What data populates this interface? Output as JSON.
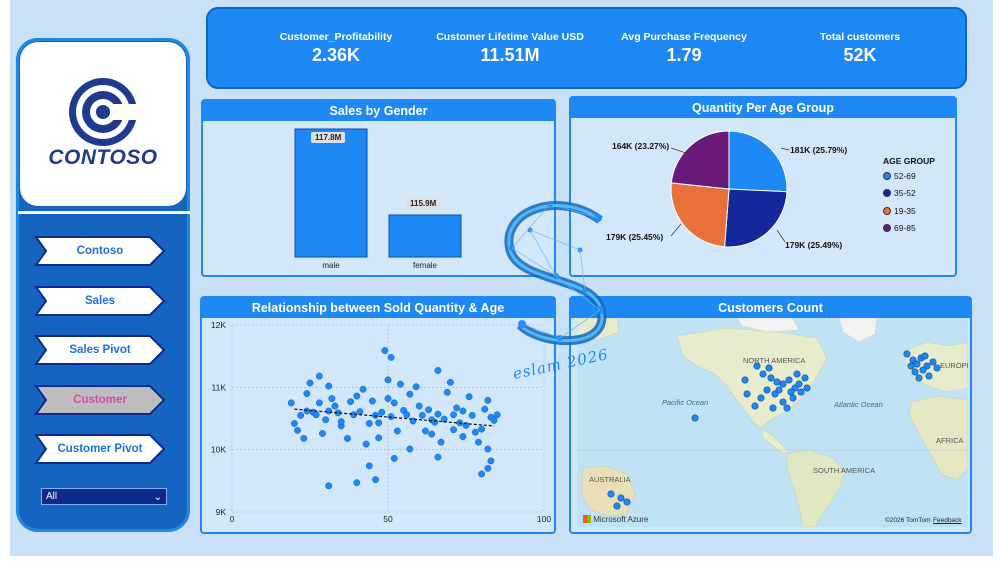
{
  "brand": {
    "name": "CONTOSO"
  },
  "nav": {
    "items": [
      {
        "label": "Contoso",
        "active": false
      },
      {
        "label": "Sales",
        "active": false
      },
      {
        "label": "Sales Pivot",
        "active": false
      },
      {
        "label": "Customer",
        "active": true
      },
      {
        "label": "Customer Pivot",
        "active": false
      }
    ],
    "filter_value": "All"
  },
  "kpis": [
    {
      "title": "Customer_Profitability",
      "value": "2.36K"
    },
    {
      "title": "Customer Lifetime Value USD",
      "value": "11.51M"
    },
    {
      "title": "Avg Purchase Frequency",
      "value": "1.79"
    },
    {
      "title": "Total customers",
      "value": "52K"
    }
  ],
  "panels": {
    "sales_by_gender": "Sales by Gender",
    "quantity_per_age": "Quantity Per Age Group",
    "relationship": "Relationship between Sold Quantity & Age",
    "customers_count": "Customers Count"
  },
  "watermark": {
    "text": "eslam 2026"
  },
  "chart_data": [
    {
      "type": "bar",
      "title": "Sales by Gender",
      "categories": [
        "male",
        "female"
      ],
      "values": [
        117.8,
        115.9
      ],
      "value_labels": [
        "117.8M",
        "115.9M"
      ],
      "color": "#1e88f5"
    },
    {
      "type": "pie",
      "title": "Quantity Per Age Group",
      "legend_title": "AGE GROUP",
      "legend_position": "right",
      "slices": [
        {
          "name": "52-69",
          "value": 181,
          "label": "181K (25.79%)",
          "color": "#1e88f5"
        },
        {
          "name": "35-52",
          "value": 179,
          "label": "179K (25.49%)",
          "color": "#14279b"
        },
        {
          "name": "19-35",
          "value": 179,
          "label": "179K (25.45%)",
          "color": "#e8713a"
        },
        {
          "name": "69-85",
          "value": 164,
          "label": "164K (23.27%)",
          "color": "#6a1b7a"
        }
      ]
    },
    {
      "type": "scatter",
      "title": "Relationship between Sold Quantity & Age",
      "xlim": [
        0,
        100
      ],
      "ylim": [
        9000,
        12000
      ],
      "x_ticks": [
        "0",
        "50",
        "100"
      ],
      "y_ticks": [
        "12K",
        "11K",
        "10K",
        "9K"
      ],
      "grid": true,
      "trendline": {
        "x": [
          20,
          84
        ],
        "y": [
          10650,
          10380
        ]
      },
      "points": [
        [
          19,
          10750
        ],
        [
          20,
          10420
        ],
        [
          21,
          10310
        ],
        [
          22,
          10550
        ],
        [
          23,
          10180
        ],
        [
          24,
          10620
        ],
        [
          24,
          10900
        ],
        [
          25,
          11070
        ],
        [
          26,
          10600
        ],
        [
          27,
          10560
        ],
        [
          28,
          11180
        ],
        [
          28,
          10750
        ],
        [
          29,
          10260
        ],
        [
          30,
          10480
        ],
        [
          31,
          10620
        ],
        [
          31,
          11020
        ],
        [
          32,
          10820
        ],
        [
          33,
          10700
        ],
        [
          34,
          10590
        ],
        [
          35,
          10380
        ],
        [
          35,
          10450
        ],
        [
          37,
          10180
        ],
        [
          38,
          10770
        ],
        [
          39,
          10560
        ],
        [
          40,
          10860
        ],
        [
          41,
          10610
        ],
        [
          42,
          10970
        ],
        [
          43,
          10090
        ],
        [
          44,
          10420
        ],
        [
          45,
          10780
        ],
        [
          46,
          10550
        ],
        [
          47,
          10430
        ],
        [
          47,
          10190
        ],
        [
          48,
          10600
        ],
        [
          49,
          11590
        ],
        [
          50,
          11120
        ],
        [
          50,
          10820
        ],
        [
          51,
          10530
        ],
        [
          51,
          11480
        ],
        [
          52,
          10750
        ],
        [
          53,
          10300
        ],
        [
          54,
          11050
        ],
        [
          55,
          10630
        ],
        [
          56,
          10560
        ],
        [
          57,
          10890
        ],
        [
          58,
          10460
        ],
        [
          59,
          11010
        ],
        [
          60,
          10700
        ],
        [
          61,
          10550
        ],
        [
          62,
          10300
        ],
        [
          63,
          10640
        ],
        [
          64,
          10480
        ],
        [
          64,
          10250
        ],
        [
          65,
          10440
        ],
        [
          66,
          11270
        ],
        [
          66,
          10570
        ],
        [
          67,
          10120
        ],
        [
          68,
          10490
        ],
        [
          69,
          10920
        ],
        [
          70,
          11080
        ],
        [
          71,
          10560
        ],
        [
          72,
          10670
        ],
        [
          73,
          10430
        ],
        [
          74,
          10620
        ],
        [
          74,
          10210
        ],
        [
          75,
          10390
        ],
        [
          76,
          10850
        ],
        [
          77,
          10550
        ],
        [
          78,
          10280
        ],
        [
          79,
          10120
        ],
        [
          80,
          10330
        ],
        [
          81,
          10650
        ],
        [
          82,
          10790
        ],
        [
          83,
          10520
        ],
        [
          84,
          10470
        ],
        [
          85,
          10560
        ],
        [
          82,
          10010
        ],
        [
          83,
          9820
        ],
        [
          82,
          9700
        ],
        [
          80,
          9610
        ],
        [
          40,
          9470
        ],
        [
          31,
          9420
        ],
        [
          46,
          9520
        ],
        [
          52,
          9860
        ],
        [
          66,
          9880
        ],
        [
          44,
          9740
        ],
        [
          57,
          10010
        ],
        [
          71,
          10320
        ]
      ]
    }
  ],
  "map": {
    "labels": [
      "NORTH AMERICA",
      "EUROPE",
      "AFRICA",
      "SOUTH AMERICA",
      "AUSTRALIA"
    ],
    "oceans": [
      "Pacific Ocean",
      "Atlantic Ocean"
    ],
    "provider": "Microsoft Azure",
    "copyright": "©2026 TomTom",
    "feedback": "Feedback",
    "marker_color": "#1e88f5"
  }
}
